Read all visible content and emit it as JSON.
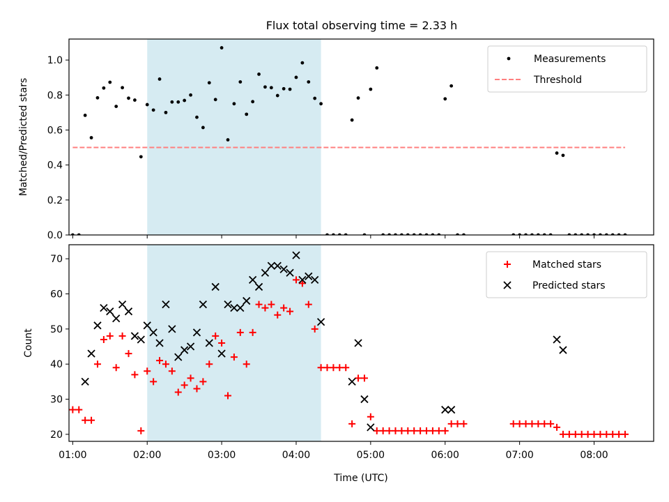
{
  "title": "Flux total observing time = 2.33 h",
  "xlabel": "Time (UTC)",
  "colors": {
    "measurements": "#000000",
    "threshold": "#ff7f7f",
    "matched": "#ff0000",
    "predicted": "#000000",
    "span": "#add8e6"
  },
  "chart_data": [
    {
      "type": "scatter",
      "panel": "top",
      "ylabel": "Matched/Predicted stars",
      "xlim": [
        "00:57",
        "08:48"
      ],
      "ylim": [
        0,
        1.12
      ],
      "x_ticks": [
        "01:00",
        "02:00",
        "03:00",
        "04:00",
        "05:00",
        "06:00",
        "07:00",
        "08:00"
      ],
      "y_ticks": [
        "0.0",
        "0.2",
        "0.4",
        "0.6",
        "0.8",
        "1.0"
      ],
      "shaded_span": [
        "02:00",
        "04:20"
      ],
      "legend": {
        "placement": "upper right",
        "entries": [
          "Measurements",
          "Threshold"
        ]
      },
      "threshold": {
        "name": "Threshold",
        "y": 0.5,
        "x_range": [
          "01:00",
          "08:25"
        ]
      },
      "measurements": {
        "name": "Measurements",
        "times": [
          "01:00",
          "01:05",
          "01:10",
          "01:15",
          "01:20",
          "01:25",
          "01:30",
          "01:35",
          "01:40",
          "01:45",
          "01:50",
          "01:55",
          "02:00",
          "02:05",
          "02:10",
          "02:15",
          "02:20",
          "02:25",
          "02:30",
          "02:35",
          "02:40",
          "02:45",
          "02:50",
          "02:55",
          "03:00",
          "03:05",
          "03:10",
          "03:15",
          "03:20",
          "03:25",
          "03:30",
          "03:35",
          "03:40",
          "03:45",
          "03:50",
          "03:55",
          "04:00",
          "04:05",
          "04:10",
          "04:15",
          "04:20",
          "04:25",
          "04:30",
          "04:35",
          "04:40",
          "04:45",
          "04:50",
          "04:55",
          "05:00",
          "05:05",
          "05:10",
          "05:15",
          "05:20",
          "05:25",
          "05:30",
          "05:35",
          "05:40",
          "05:45",
          "05:50",
          "05:55",
          "06:00",
          "06:05",
          "06:10",
          "06:15",
          "06:55",
          "07:00",
          "07:05",
          "07:10",
          "07:15",
          "07:20",
          "07:25",
          "07:30",
          "07:35",
          "07:40",
          "07:45",
          "07:50",
          "07:55",
          "08:00",
          "08:05",
          "08:10",
          "08:15",
          "08:20",
          "08:25"
        ],
        "values": [
          0,
          0,
          0.684,
          0.556,
          0.784,
          0.84,
          0.873,
          0.735,
          0.842,
          0.782,
          0.771,
          0.447,
          0.745,
          0.714,
          0.891,
          0.7,
          0.76,
          0.76,
          0.769,
          0.8,
          0.673,
          0.614,
          0.87,
          0.774,
          1.07,
          0.544,
          0.75,
          0.875,
          0.69,
          0.762,
          0.919,
          0.846,
          0.842,
          0.797,
          0.836,
          0.833,
          0.901,
          0.984,
          0.875,
          0.781,
          0.75,
          0,
          0,
          0,
          0,
          0.657,
          0.783,
          0,
          0.833,
          0.955,
          0,
          0,
          0,
          0,
          0,
          0,
          0,
          0,
          0,
          0,
          0.778,
          0.852,
          0,
          0,
          0,
          0,
          0,
          0,
          0,
          0,
          0,
          0.468,
          0.455,
          0,
          0,
          0,
          0,
          0,
          0,
          0,
          0,
          0,
          0
        ]
      }
    },
    {
      "type": "scatter",
      "panel": "bottom",
      "ylabel": "Count",
      "xlim": [
        "00:57",
        "08:48"
      ],
      "ylim": [
        18,
        74
      ],
      "x_ticks": [
        "01:00",
        "02:00",
        "03:00",
        "04:00",
        "05:00",
        "06:00",
        "07:00",
        "08:00"
      ],
      "y_ticks": [
        "20",
        "30",
        "40",
        "50",
        "60",
        "70"
      ],
      "shaded_span": [
        "02:00",
        "04:20"
      ],
      "legend": {
        "placement": "upper right",
        "entries": [
          "Matched stars",
          "Predicted stars"
        ]
      },
      "series": [
        {
          "name": "Matched stars",
          "marker": "+",
          "times": [
            "01:00",
            "01:05",
            "01:10",
            "01:15",
            "01:20",
            "01:25",
            "01:30",
            "01:35",
            "01:40",
            "01:45",
            "01:50",
            "01:55",
            "02:00",
            "02:05",
            "02:10",
            "02:15",
            "02:20",
            "02:25",
            "02:30",
            "02:35",
            "02:40",
            "02:45",
            "02:50",
            "02:55",
            "03:00",
            "03:05",
            "03:10",
            "03:15",
            "03:20",
            "03:25",
            "03:30",
            "03:35",
            "03:40",
            "03:45",
            "03:50",
            "03:55",
            "04:00",
            "04:05",
            "04:10",
            "04:15",
            "04:20",
            "04:25",
            "04:30",
            "04:35",
            "04:40",
            "04:45",
            "04:50",
            "04:55",
            "05:00",
            "05:05",
            "05:10",
            "05:15",
            "05:20",
            "05:25",
            "05:30",
            "05:35",
            "05:40",
            "05:45",
            "05:50",
            "05:55",
            "06:00",
            "06:05",
            "06:10",
            "06:15",
            "06:55",
            "07:00",
            "07:05",
            "07:10",
            "07:15",
            "07:20",
            "07:25",
            "07:30",
            "07:35",
            "07:40",
            "07:45",
            "07:50",
            "07:55",
            "08:00",
            "08:05",
            "08:10",
            "08:15",
            "08:20",
            "08:25"
          ],
          "values": [
            27,
            27,
            24,
            24,
            40,
            47,
            48,
            39,
            48,
            43,
            37,
            21,
            38,
            35,
            41,
            40,
            38,
            32,
            34,
            36,
            33,
            35,
            40,
            48,
            46,
            31,
            42,
            49,
            40,
            49,
            57,
            56,
            57,
            54,
            56,
            55,
            64,
            63,
            57,
            50,
            39,
            39,
            39,
            39,
            39,
            23,
            36,
            36,
            25,
            21,
            21,
            21,
            21,
            21,
            21,
            21,
            21,
            21,
            21,
            21,
            21,
            23,
            23,
            23,
            23,
            23,
            23,
            23,
            23,
            23,
            23,
            22,
            20,
            20,
            20,
            20,
            20,
            20,
            20,
            20,
            20,
            20,
            20
          ]
        },
        {
          "name": "Predicted stars",
          "marker": "x",
          "times": [
            "01:10",
            "01:15",
            "01:20",
            "01:25",
            "01:30",
            "01:35",
            "01:40",
            "01:45",
            "01:50",
            "01:55",
            "02:00",
            "02:05",
            "02:10",
            "02:15",
            "02:20",
            "02:25",
            "02:30",
            "02:35",
            "02:40",
            "02:45",
            "02:50",
            "02:55",
            "03:00",
            "03:05",
            "03:10",
            "03:15",
            "03:20",
            "03:25",
            "03:30",
            "03:35",
            "03:40",
            "03:45",
            "03:50",
            "03:55",
            "04:00",
            "04:05",
            "04:10",
            "04:15",
            "04:20",
            "04:45",
            "04:50",
            "04:55",
            "05:00",
            "06:00",
            "06:05",
            "07:30",
            "07:35"
          ],
          "values": [
            35,
            43,
            51,
            56,
            55,
            53,
            57,
            55,
            48,
            47,
            51,
            49,
            46,
            57,
            50,
            42,
            44,
            45,
            49,
            57,
            46,
            62,
            43,
            57,
            56,
            56,
            58,
            64,
            62,
            66,
            68,
            68,
            67,
            66,
            71,
            64,
            65,
            64,
            52,
            35,
            46,
            30,
            22,
            27,
            27,
            47,
            44
          ]
        }
      ]
    }
  ]
}
